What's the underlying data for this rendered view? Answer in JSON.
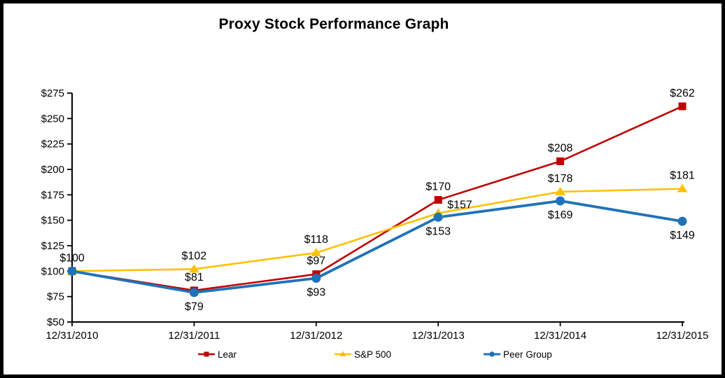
{
  "chart_data": {
    "type": "line",
    "title": "Proxy Stock Performance Graph",
    "categories": [
      "12/31/2010",
      "12/31/2011",
      "12/31/2012",
      "12/31/2013",
      "12/31/2014",
      "12/31/2015"
    ],
    "y_axis": {
      "min": 50,
      "max": 275,
      "step": 25,
      "tick_labels": [
        "$50",
        "$75",
        "$100",
        "$125",
        "$150",
        "$175",
        "$200",
        "$225",
        "$250",
        "$275"
      ]
    },
    "grid": false,
    "legend_position": "bottom",
    "series": [
      {
        "name": "Lear",
        "color": "#C00000",
        "marker": "square",
        "line_width": 2.6,
        "values": [
          100,
          81,
          97,
          170,
          208,
          262
        ]
      },
      {
        "name": "S&P 500",
        "color": "#FFC000",
        "marker": "triangle",
        "line_width": 2.6,
        "values": [
          100,
          102,
          118,
          157,
          178,
          181
        ]
      },
      {
        "name": "Peer Group",
        "color": "#1F72B8",
        "marker": "circle",
        "line_width": 3.8,
        "values": [
          100,
          79,
          93,
          153,
          169,
          149
        ]
      }
    ],
    "point_labels": [
      {
        "series": "Lear",
        "point": 0,
        "text": "$100",
        "position": "above"
      },
      {
        "series": "S&P 500",
        "point": 1,
        "text": "$102",
        "position": "above"
      },
      {
        "series": "Lear",
        "point": 1,
        "text": "$81",
        "position": "above"
      },
      {
        "series": "Peer Group",
        "point": 1,
        "text": "$79",
        "position": "below"
      },
      {
        "series": "S&P 500",
        "point": 2,
        "text": "$118",
        "position": "above"
      },
      {
        "series": "Lear",
        "point": 2,
        "text": "$97",
        "position": "above"
      },
      {
        "series": "Peer Group",
        "point": 2,
        "text": "$93",
        "position": "below"
      },
      {
        "series": "Lear",
        "point": 3,
        "text": "$170",
        "position": "above"
      },
      {
        "series": "S&P 500",
        "point": 3,
        "text": "$157",
        "position": "right"
      },
      {
        "series": "Peer Group",
        "point": 3,
        "text": "$153",
        "position": "below"
      },
      {
        "series": "Lear",
        "point": 4,
        "text": "$208",
        "position": "above"
      },
      {
        "series": "S&P 500",
        "point": 4,
        "text": "$178",
        "position": "above"
      },
      {
        "series": "Peer Group",
        "point": 4,
        "text": "$169",
        "position": "below"
      },
      {
        "series": "Lear",
        "point": 5,
        "text": "$262",
        "position": "above"
      },
      {
        "series": "S&P 500",
        "point": 5,
        "text": "$181",
        "position": "above"
      },
      {
        "series": "Peer Group",
        "point": 5,
        "text": "$149",
        "position": "below"
      }
    ],
    "axis_color": "#000000",
    "text_color": "#000000",
    "background": "#FFFFFF",
    "border_color": "#000000"
  }
}
